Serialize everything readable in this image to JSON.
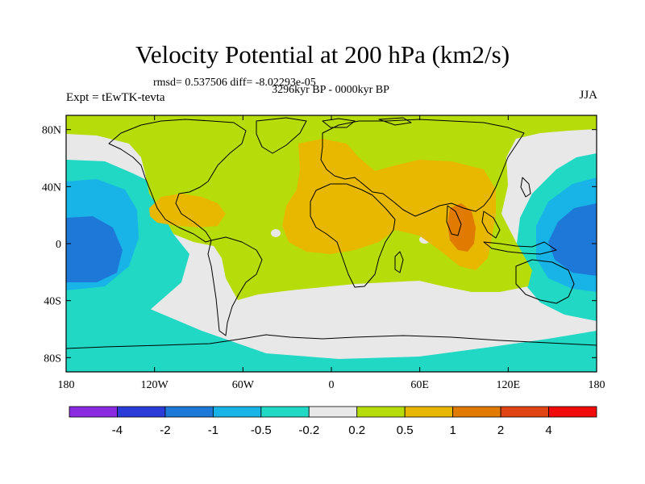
{
  "title": "Velocity Potential at 200 hPa (km2/s)",
  "stats_text": "rmsd= 0.537506 diff= -8.02293e-05",
  "period": "3296kyr BP - 0000kyr BP",
  "experiment": "Expt = tEwTK-tevta",
  "season": "JJA",
  "map": {
    "lon_range": [
      -180,
      180
    ],
    "lat_range": [
      -90,
      90
    ],
    "lon_ticks": [
      "180",
      "120W",
      "60W",
      "0",
      "60E",
      "120E",
      "180"
    ],
    "lat_ticks": [
      "80N",
      "40N",
      "0",
      "40S",
      "80S"
    ]
  },
  "colorbar": {
    "labels": [
      "-4",
      "-2",
      "-1",
      "-0.5",
      "-0.2",
      "0.2",
      "0.5",
      "1",
      "2",
      "4"
    ],
    "colors": [
      "#8a2be2",
      "#2a3bd8",
      "#1e78d8",
      "#18b4e8",
      "#20d8c4",
      "#e8e8e8",
      "#b6dc0a",
      "#e8b800",
      "#e07a00",
      "#e04414",
      "#f00a0a"
    ]
  },
  "field_colors": {
    "neg_2_to_1": "#1e78d8",
    "neg_1_to_05": "#18b4e8",
    "neg_05_to_02": "#20d8c4",
    "near_zero": "#e8e8e8",
    "pos_02_to_05": "#b6dc0a",
    "pos_05_to_1": "#e8b800",
    "pos_1_to_2": "#e07a00"
  }
}
